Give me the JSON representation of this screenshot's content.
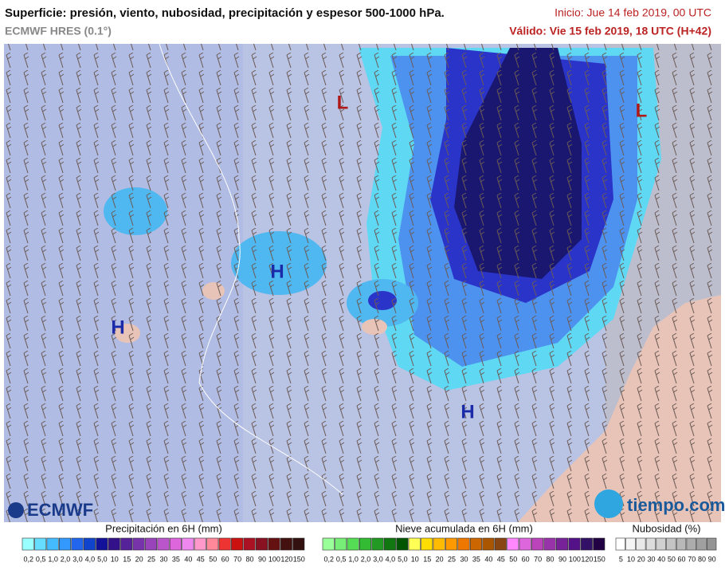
{
  "header": {
    "title": "Superficie: presión, viento, nubosidad, precipitación y espesor 500-1000 hPa.",
    "model": "ECMWF HRES (0.1°)",
    "start": "Inicio: Jue 14 feb 2019, 00 UTC",
    "valid": "Válido: Vie 15 feb 2019, 18 UTC (H+42)"
  },
  "map": {
    "pressure_labels": [
      {
        "text": "L",
        "color": "#b01818"
      },
      {
        "text": "L",
        "color": "#b01818"
      },
      {
        "text": "H",
        "color": "#1a2aa8"
      },
      {
        "text": "H",
        "color": "#1a2aa8"
      },
      {
        "text": "H",
        "color": "#1a2aa8"
      }
    ]
  },
  "logos": {
    "ecmwf": "ECMWF",
    "tiempo": "tiempo.com"
  },
  "legend": {
    "precipitation": {
      "title": "Precipitación en 6H (mm)",
      "labels": [
        "0,2",
        "0,5",
        "1,0",
        "2,0",
        "3,0",
        "4,0",
        "5,0",
        "10",
        "15",
        "20",
        "25",
        "30",
        "35",
        "40",
        "45",
        "50",
        "60",
        "70",
        "80",
        "90",
        "100",
        "120",
        "150"
      ],
      "colors": [
        "#99ffff",
        "#66ddff",
        "#44bbff",
        "#3399ff",
        "#2266ee",
        "#1144cc",
        "#111199",
        "#331188",
        "#552299",
        "#7733aa",
        "#9944bb",
        "#bb55cc",
        "#dd66dd",
        "#ee88ee",
        "#ff99cc",
        "#ff8899",
        "#ee3333",
        "#cc1111",
        "#aa1122",
        "#881122",
        "#661111",
        "#441111",
        "#331111"
      ]
    },
    "snow": {
      "title": "Nieve acumulada en 6H (mm)",
      "labels": [
        "0,2",
        "0,5",
        "1,0",
        "2,0",
        "3,0",
        "4,0",
        "5,0",
        "10",
        "15",
        "20",
        "25",
        "30",
        "35",
        "40",
        "45",
        "50",
        "60",
        "70",
        "80",
        "90",
        "100",
        "120",
        "150"
      ],
      "colors": [
        "#99ff99",
        "#77ee77",
        "#55dd55",
        "#33bb33",
        "#229922",
        "#117711",
        "#005500",
        "#ffff55",
        "#ffdd00",
        "#ffbb00",
        "#ff9900",
        "#ee7700",
        "#cc6600",
        "#aa5500",
        "#884411",
        "#ff88ff",
        "#dd66dd",
        "#bb44bb",
        "#9933aa",
        "#772299",
        "#551188",
        "#331166",
        "#220044"
      ]
    },
    "cloud": {
      "title": "Nubosidad (%)",
      "labels": [
        "5",
        "10",
        "20",
        "30",
        "40",
        "50",
        "60",
        "70",
        "80",
        "90"
      ],
      "colors": [
        "#ffffff",
        "#f4f4f4",
        "#e8e8e8",
        "#dcdcdc",
        "#d0d0d0",
        "#c4c4c4",
        "#b8b8b8",
        "#acacac",
        "#a0a0a0",
        "#949494"
      ]
    }
  }
}
